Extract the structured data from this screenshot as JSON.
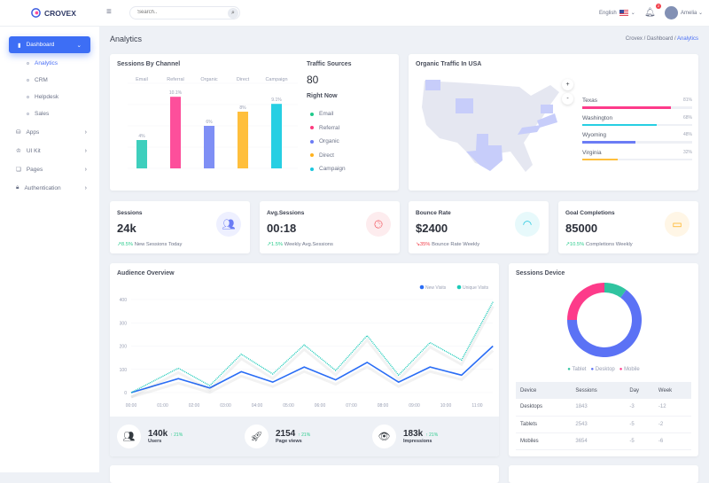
{
  "header": {
    "brand": "CROVEX",
    "search_placeholder": "Search..",
    "language": "English",
    "notifications": "2",
    "user": "Amelia"
  },
  "sidebar": {
    "items": [
      {
        "label": "Dashboard"
      },
      {
        "label": "Apps"
      },
      {
        "label": "UI Kit"
      },
      {
        "label": "Pages"
      },
      {
        "label": "Authentication"
      }
    ],
    "subitems": [
      {
        "label": "Analytics"
      },
      {
        "label": "CRM"
      },
      {
        "label": "Helpdesk"
      },
      {
        "label": "Sales"
      }
    ]
  },
  "page": {
    "title": "Analytics",
    "breadcrumb": [
      "Crovex",
      "Dashboard",
      "Analytics"
    ]
  },
  "colors": {
    "primary": "#4a7cf6",
    "teal": "#3ecfbd",
    "pink": "#fd4f9b",
    "purple": "#7f8ff5",
    "yellow": "#ffbf3c",
    "cyan": "#27cfe3"
  },
  "sessions_by_channel": {
    "title": "Sessions By Channel",
    "chart_data": {
      "type": "bar",
      "categories": [
        "Email",
        "Referral",
        "Organic",
        "Direct",
        "Campaign"
      ],
      "values": [
        4,
        10.1,
        6,
        8,
        9.1
      ],
      "labels": [
        "4%",
        "10.1%",
        "6%",
        "8%",
        "9.1%"
      ],
      "colors": [
        "#3ecfbd",
        "#fd4f9b",
        "#7f8ff5",
        "#ffbf3c",
        "#27cfe3"
      ],
      "ylim": [
        0,
        12
      ],
      "grid": true
    }
  },
  "traffic_sources": {
    "title": "Traffic Sources",
    "value": "80",
    "subtitle": "Right Now",
    "items": [
      {
        "label": "Email",
        "color": "#1ec98a"
      },
      {
        "label": "Referral",
        "color": "#fd3b7e"
      },
      {
        "label": "Organic",
        "color": "#6b7cf5"
      },
      {
        "label": "Direct",
        "color": "#ffb21d"
      },
      {
        "label": "Campaign",
        "color": "#1bc6de"
      }
    ]
  },
  "organic_traffic": {
    "title": "Organic Traffic In USA",
    "zoom_in": "+",
    "zoom_out": "-",
    "states": [
      {
        "name": "Texas",
        "percent": "81%",
        "value": 81,
        "color": "#fd3b8a"
      },
      {
        "name": "Washington",
        "percent": "68%",
        "value": 68,
        "color": "#27cfe3"
      },
      {
        "name": "Wyoming",
        "percent": "48%",
        "value": 48,
        "color": "#6b7cf5"
      },
      {
        "name": "Virginia",
        "percent": "32%",
        "value": 32,
        "color": "#ffbf3c"
      }
    ]
  },
  "stats": [
    {
      "label": "Sessions",
      "value": "24k",
      "change": "8.5%",
      "desc": "New Sessions Today",
      "trend": "up",
      "icon": "users-icon"
    },
    {
      "label": "Avg.Sessions",
      "value": "00:18",
      "change": "1.5%",
      "desc": "Weekly Avg.Sessions",
      "trend": "up",
      "icon": "clock-icon"
    },
    {
      "label": "Bounce Rate",
      "value": "$2400",
      "change": "35%",
      "desc": "Bounce Rate Weekly",
      "trend": "down",
      "icon": "gauge-icon"
    },
    {
      "label": "Goal Completions",
      "value": "85000",
      "change": "10.5%",
      "desc": "Completions Weekly",
      "trend": "up",
      "icon": "wallet-icon"
    }
  ],
  "audience": {
    "title": "Audience Overview",
    "chart_data": {
      "type": "line",
      "x_ticks": [
        "00:00",
        "01:00",
        "02:00",
        "03:00",
        "04:00",
        "05:00",
        "06:00",
        "07:00",
        "08:00",
        "09:00",
        "10:00",
        "11:00"
      ],
      "y_ticks": [
        "0",
        "100",
        "200",
        "300",
        "400"
      ],
      "ylim": [
        0,
        400
      ],
      "legend": "top-right",
      "grid": true,
      "x": [
        0,
        1.5,
        2.5,
        3.5,
        4.5,
        5.5,
        6.5,
        7.5,
        8.5,
        9.5,
        10.5,
        11.5
      ],
      "series": [
        {
          "name": "New Visits",
          "color": "#2a6df5",
          "values": [
            0,
            60,
            20,
            90,
            45,
            110,
            55,
            130,
            45,
            110,
            75,
            200
          ]
        },
        {
          "name": "Unique Visits",
          "color": "#1ccab8",
          "values": [
            0,
            105,
            30,
            165,
            80,
            205,
            95,
            245,
            75,
            215,
            140,
            390
          ]
        }
      ]
    },
    "summary": [
      {
        "value": "140k",
        "change": "21%",
        "label": "Users",
        "icon": "users-icon"
      },
      {
        "value": "2154",
        "change": "21%",
        "label": "Page views",
        "icon": "rocket-icon"
      },
      {
        "value": "183k",
        "change": "21%",
        "label": "Impressions",
        "icon": "eye-icon"
      }
    ]
  },
  "sessions_device": {
    "title": "Sessions Device",
    "chart_data": {
      "type": "pie",
      "labels": [
        "Tablet",
        "Desktop",
        "Mobile"
      ],
      "values": [
        10,
        65,
        25
      ],
      "colors": [
        "#30c4a0",
        "#5b72f5",
        "#fd3b8a"
      ]
    },
    "table": {
      "headers": [
        "Device",
        "Sessions",
        "Day",
        "Week"
      ],
      "rows": [
        [
          "Desktops",
          "1843",
          "-3",
          "-12"
        ],
        [
          "Tablets",
          "2543",
          "-5",
          "-2"
        ],
        [
          "Mobiles",
          "3654",
          "-5",
          "-6"
        ]
      ]
    }
  }
}
